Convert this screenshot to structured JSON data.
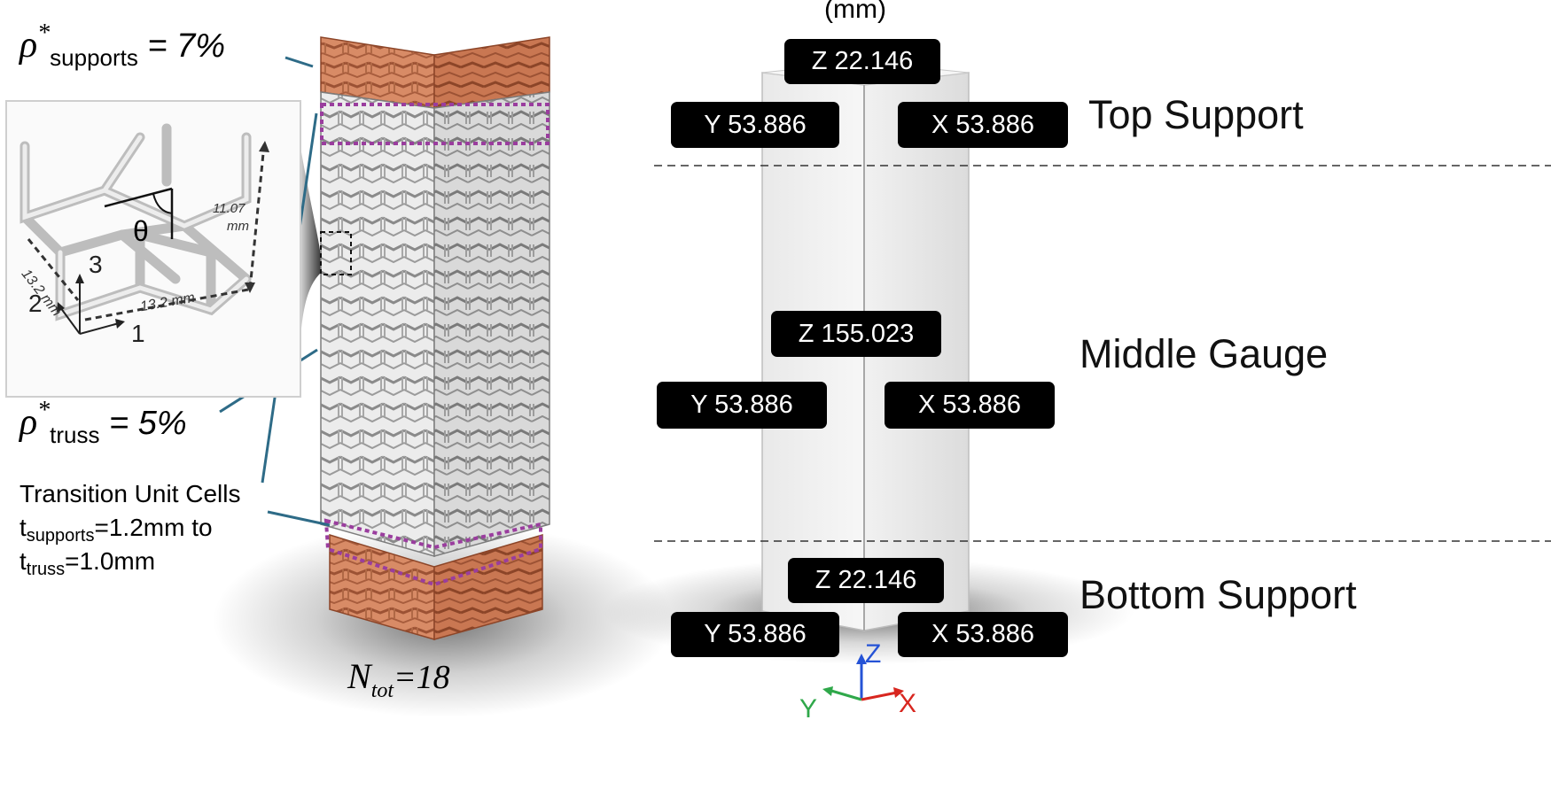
{
  "left": {
    "rho_supports": {
      "symbol": "ρ",
      "star": "*",
      "subscript": "supports",
      "value": "= 7%"
    },
    "rho_truss": {
      "symbol": "ρ",
      "star": "*",
      "subscript": "truss",
      "value": "= 5%"
    },
    "transition": {
      "title": "Transition Unit Cells",
      "line2_t": "t",
      "line2_sub": "supports",
      "line2_rest": "=1.2mm to",
      "line3_t": "t",
      "line3_sub": "truss",
      "line3_rest": "=1.0mm"
    },
    "n_tot": {
      "symbol": "N",
      "subscript": "tot",
      "value": "=18"
    },
    "inset": {
      "height_value": "11.07",
      "height_unit": "mm",
      "width1": "13.2 mm",
      "width2": "13.2 mm",
      "angle": "θ",
      "axis1": "1",
      "axis2": "2",
      "axis3": "3"
    }
  },
  "right": {
    "units": "(mm)",
    "regions": {
      "top": "Top Support",
      "middle": "Middle Gauge",
      "bottom": "Bottom Support"
    },
    "top_tags": {
      "z": "Z 22.146",
      "y": "Y 53.886",
      "x": "X 53.886"
    },
    "middle_tags": {
      "z": "Z 155.023",
      "y": "Y 53.886",
      "x": "X 53.886"
    },
    "bottom_tags": {
      "z": "Z 22.146",
      "y": "Y 53.886",
      "x": "X 53.886"
    },
    "axes": {
      "z": "Z",
      "y": "Y",
      "x": "X"
    }
  },
  "colors": {
    "support": "#cf8462",
    "support_dark": "#9c5234",
    "truss": "#d2d2d2",
    "truss_dark": "#6e6e6e",
    "transition_dash": "#9a3d9e",
    "leader": "#2e6b87",
    "axis_z": "#2553d6",
    "axis_y": "#2fa84a",
    "axis_x": "#d8261f"
  }
}
